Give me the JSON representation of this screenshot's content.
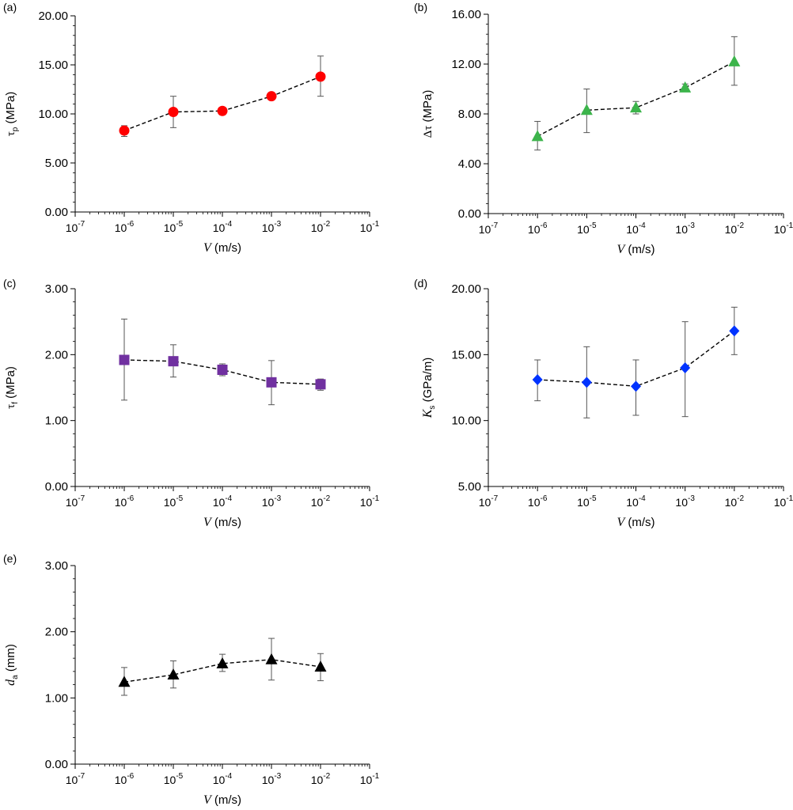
{
  "chart_data": [
    {
      "type": "scatter",
      "panel_label": "(a)",
      "ylabel_symbol": "τ",
      "ylabel_sub": "p",
      "ylabel_unit": "(MPa)",
      "xlabel": "V (m/s)",
      "xscale": "log",
      "xlim": [
        1e-07,
        0.1
      ],
      "ylim": [
        0,
        20
      ],
      "yticks": [
        "0.00",
        "5.00",
        "10.00",
        "15.00",
        "20.00"
      ],
      "ytick_values": [
        0,
        5,
        10,
        15,
        20
      ],
      "xtick_labels": [
        {
          "base": "10",
          "exp": "-7"
        },
        {
          "base": "10",
          "exp": "-6"
        },
        {
          "base": "10",
          "exp": "-5"
        },
        {
          "base": "10",
          "exp": "-4"
        },
        {
          "base": "10",
          "exp": "-3"
        },
        {
          "base": "10",
          "exp": "-2"
        },
        {
          "base": "10",
          "exp": "-1"
        }
      ],
      "marker": "circle",
      "color": "#ff0000",
      "x": [
        1e-06,
        1e-05,
        0.0001,
        0.001,
        0.01
      ],
      "y": [
        8.3,
        10.2,
        10.3,
        11.8,
        13.8
      ],
      "err_low": [
        7.7,
        8.6,
        10.1,
        11.6,
        11.8
      ],
      "err_high": [
        8.8,
        11.8,
        10.5,
        12.0,
        15.9
      ]
    },
    {
      "type": "scatter",
      "panel_label": "(b)",
      "ylabel_symbol": "Δτ",
      "ylabel_sub": "",
      "ylabel_unit": "(MPa)",
      "xlabel": "V (m/s)",
      "xscale": "log",
      "xlim": [
        1e-07,
        0.1
      ],
      "ylim": [
        0,
        16
      ],
      "yticks": [
        "0.00",
        "4.00",
        "8.00",
        "12.00",
        "16.00"
      ],
      "ytick_values": [
        0,
        4,
        8,
        12,
        16
      ],
      "xtick_labels": [
        {
          "base": "10",
          "exp": "-7"
        },
        {
          "base": "10",
          "exp": "-6"
        },
        {
          "base": "10",
          "exp": "-5"
        },
        {
          "base": "10",
          "exp": "-4"
        },
        {
          "base": "10",
          "exp": "-3"
        },
        {
          "base": "10",
          "exp": "-2"
        },
        {
          "base": "10",
          "exp": "-1"
        }
      ],
      "marker": "triangle",
      "color": "#3cb44b",
      "x": [
        1e-06,
        1e-05,
        0.0001,
        0.001,
        0.01
      ],
      "y": [
        6.2,
        8.3,
        8.5,
        10.1,
        12.2
      ],
      "err_low": [
        5.1,
        6.5,
        8.0,
        9.8,
        10.3
      ],
      "err_high": [
        7.4,
        10.0,
        9.0,
        10.4,
        14.2
      ]
    },
    {
      "type": "scatter",
      "panel_label": "(c)",
      "ylabel_symbol": "τ",
      "ylabel_sub": "f",
      "ylabel_unit": "(MPa)",
      "xlabel": "V (m/s)",
      "xscale": "log",
      "xlim": [
        1e-07,
        0.1
      ],
      "ylim": [
        0,
        3
      ],
      "yticks": [
        "0.00",
        "1.00",
        "2.00",
        "3.00"
      ],
      "ytick_values": [
        0,
        1,
        2,
        3
      ],
      "xtick_labels": [
        {
          "base": "10",
          "exp": "-7"
        },
        {
          "base": "10",
          "exp": "-6"
        },
        {
          "base": "10",
          "exp": "-5"
        },
        {
          "base": "10",
          "exp": "-4"
        },
        {
          "base": "10",
          "exp": "-3"
        },
        {
          "base": "10",
          "exp": "-2"
        },
        {
          "base": "10",
          "exp": "-1"
        }
      ],
      "marker": "square",
      "color": "#7030a0",
      "x": [
        1e-06,
        1e-05,
        0.0001,
        0.001,
        0.01
      ],
      "y": [
        1.92,
        1.9,
        1.77,
        1.58,
        1.55
      ],
      "err_low": [
        1.31,
        1.66,
        1.68,
        1.24,
        1.46
      ],
      "err_high": [
        2.54,
        2.15,
        1.86,
        1.91,
        1.63
      ]
    },
    {
      "type": "scatter",
      "panel_label": "(d)",
      "ylabel_symbol": "K",
      "ylabel_sub": "s",
      "ylabel_unit": "(GPa/m)",
      "xlabel": "V (m/s)",
      "xscale": "log",
      "xlim": [
        1e-07,
        0.1
      ],
      "ylim": [
        5,
        20
      ],
      "yticks": [
        "5.00",
        "10.00",
        "15.00",
        "20.00"
      ],
      "ytick_values": [
        5,
        10,
        15,
        20
      ],
      "xtick_labels": [
        {
          "base": "10",
          "exp": "-7"
        },
        {
          "base": "10",
          "exp": "-6"
        },
        {
          "base": "10",
          "exp": "-5"
        },
        {
          "base": "10",
          "exp": "-4"
        },
        {
          "base": "10",
          "exp": "-3"
        },
        {
          "base": "10",
          "exp": "-2"
        },
        {
          "base": "10",
          "exp": "-1"
        }
      ],
      "marker": "diamond",
      "color": "#0033ff",
      "x": [
        1e-06,
        1e-05,
        0.0001,
        0.001,
        0.01
      ],
      "y": [
        13.1,
        12.9,
        12.6,
        14.0,
        16.8
      ],
      "err_low": [
        11.5,
        10.2,
        10.4,
        10.3,
        15.0
      ],
      "err_high": [
        14.6,
        15.6,
        14.6,
        17.5,
        18.6
      ]
    },
    {
      "type": "scatter",
      "panel_label": "(e)",
      "ylabel_symbol": "d",
      "ylabel_sub": "a",
      "ylabel_unit": "(mm)",
      "xlabel": "V (m/s)",
      "xscale": "log",
      "xlim": [
        1e-07,
        0.1
      ],
      "ylim": [
        0,
        3
      ],
      "yticks": [
        "0.00",
        "1.00",
        "2.00",
        "3.00"
      ],
      "ytick_values": [
        0,
        1,
        2,
        3
      ],
      "xtick_labels": [
        {
          "base": "10",
          "exp": "-7"
        },
        {
          "base": "10",
          "exp": "-6"
        },
        {
          "base": "10",
          "exp": "-5"
        },
        {
          "base": "10",
          "exp": "-4"
        },
        {
          "base": "10",
          "exp": "-3"
        },
        {
          "base": "10",
          "exp": "-2"
        },
        {
          "base": "10",
          "exp": "-1"
        }
      ],
      "marker": "triangle",
      "color": "#000000",
      "x": [
        1e-06,
        1e-05,
        0.0001,
        0.001,
        0.01
      ],
      "y": [
        1.24,
        1.35,
        1.52,
        1.58,
        1.47
      ],
      "err_low": [
        1.04,
        1.15,
        1.4,
        1.27,
        1.26
      ],
      "err_high": [
        1.46,
        1.56,
        1.66,
        1.9,
        1.67
      ]
    }
  ]
}
